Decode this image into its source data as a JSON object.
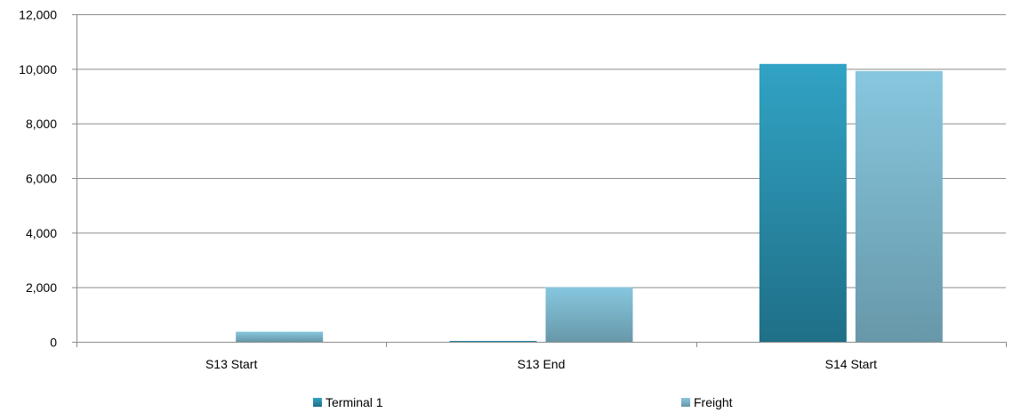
{
  "chart_data": {
    "type": "bar",
    "title": "",
    "xlabel": "",
    "ylabel": "",
    "categories": [
      "S13 Start",
      "S13 End",
      "S14 Start"
    ],
    "series": [
      {
        "name": "Terminal 1",
        "values": [
          0,
          30,
          10180
        ],
        "color_top": "#31a3c4",
        "color_bottom": "#1f6f87"
      },
      {
        "name": "Freight",
        "values": [
          370,
          2000,
          9920
        ],
        "color_top": "#87c7df",
        "color_bottom": "#6798a9"
      }
    ],
    "ylim": [
      0,
      12000
    ],
    "yticks": [
      0,
      2000,
      4000,
      6000,
      8000,
      10000,
      12000
    ],
    "ytick_labels": [
      "0",
      "2,000",
      "4,000",
      "6,000",
      "8,000",
      "10,000",
      "12,000"
    ],
    "grid": "horizontal",
    "legend_position": "bottom"
  }
}
